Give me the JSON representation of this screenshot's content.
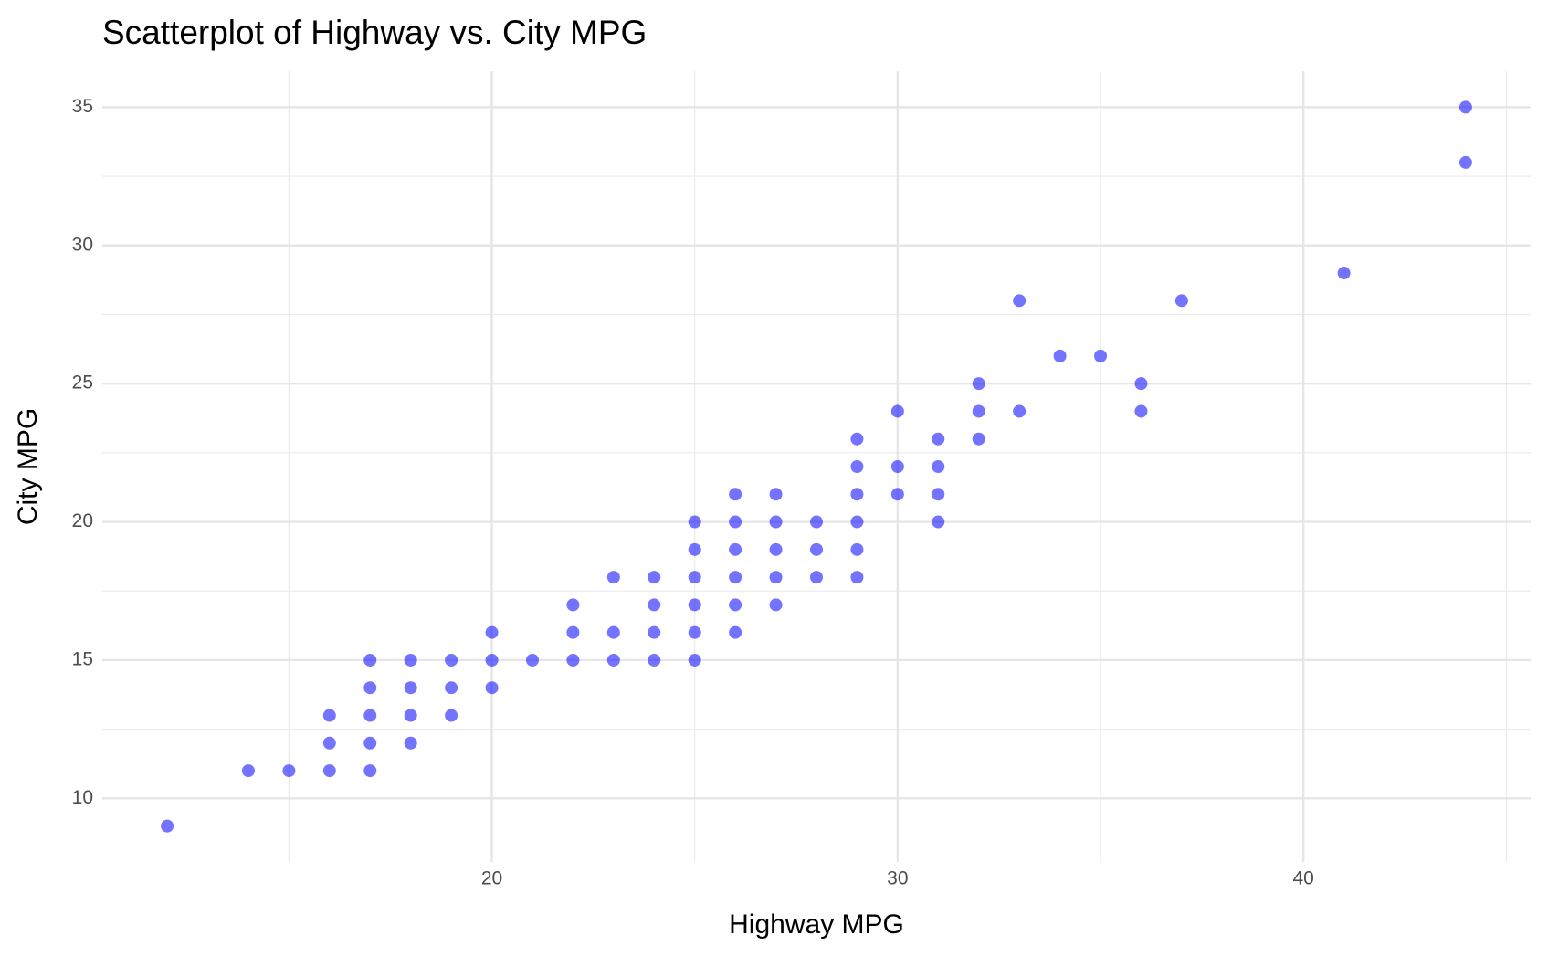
{
  "chart_data": {
    "type": "scatter",
    "title": "Scatterplot of Highway vs. City MPG",
    "x_label": "Highway MPG",
    "y_label": "City MPG",
    "x": [
      12,
      14,
      15,
      16,
      16,
      16,
      17,
      17,
      17,
      17,
      17,
      18,
      18,
      18,
      18,
      19,
      19,
      19,
      20,
      20,
      20,
      21,
      22,
      22,
      22,
      23,
      23,
      23,
      24,
      24,
      24,
      24,
      25,
      25,
      25,
      25,
      25,
      25,
      26,
      26,
      26,
      26,
      26,
      26,
      27,
      27,
      27,
      27,
      27,
      28,
      28,
      28,
      29,
      29,
      29,
      29,
      29,
      29,
      30,
      30,
      30,
      31,
      31,
      31,
      31,
      32,
      32,
      32,
      33,
      33,
      34,
      35,
      36,
      36,
      37,
      41,
      44,
      44
    ],
    "values": [
      9,
      11,
      11,
      13,
      12,
      11,
      15,
      14,
      13,
      12,
      11,
      15,
      14,
      13,
      12,
      15,
      14,
      13,
      16,
      15,
      14,
      15,
      17,
      16,
      15,
      18,
      16,
      15,
      18,
      17,
      16,
      15,
      20,
      19,
      18,
      17,
      16,
      15,
      21,
      20,
      19,
      18,
      17,
      16,
      21,
      20,
      19,
      18,
      17,
      20,
      19,
      18,
      23,
      22,
      21,
      20,
      19,
      18,
      24,
      22,
      21,
      23,
      22,
      21,
      20,
      25,
      24,
      23,
      28,
      24,
      26,
      26,
      25,
      24,
      28,
      29,
      35,
      33
    ],
    "color": "#0000ff",
    "opacity": 0.55,
    "xlim": [
      10.4,
      45.6
    ],
    "xticks": [
      20,
      30,
      40
    ],
    "ylim": [
      7.7,
      36.3
    ],
    "yticks": [
      10,
      15,
      20,
      25,
      30,
      35
    ],
    "grid": true
  }
}
